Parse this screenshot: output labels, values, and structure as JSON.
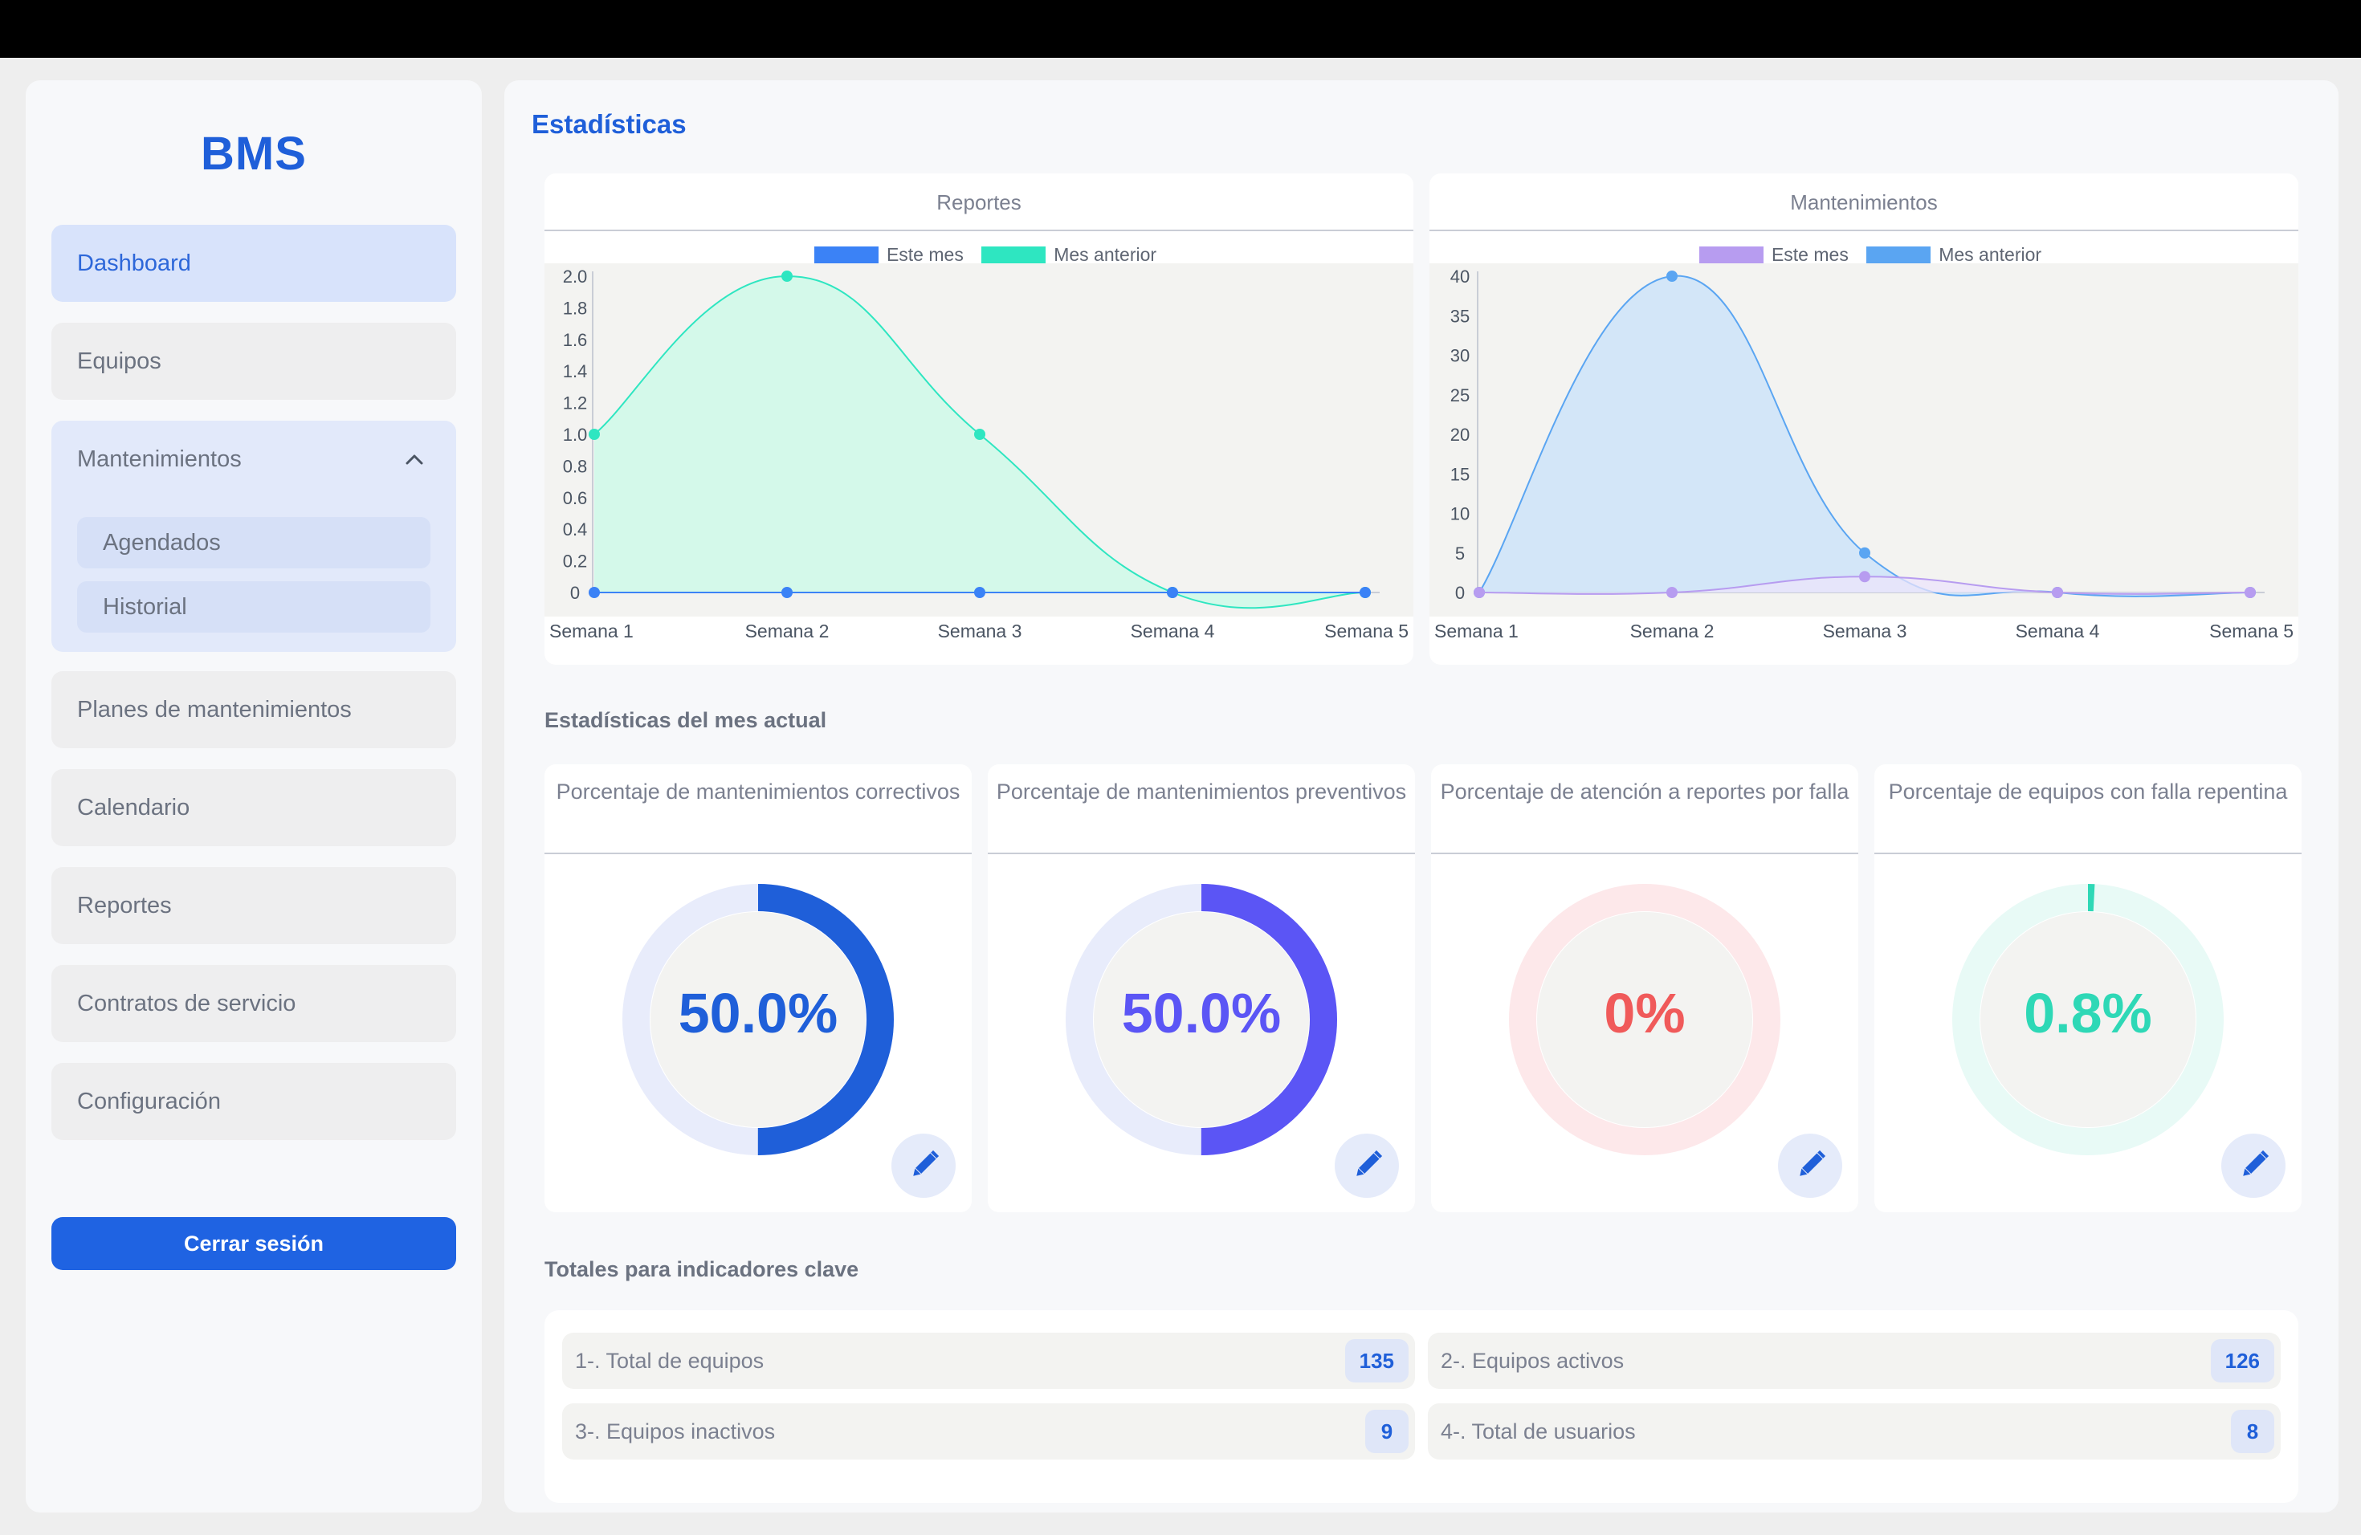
{
  "app": {
    "brand": "BMS"
  },
  "sidebar": {
    "items": [
      {
        "label": "Dashboard"
      },
      {
        "label": "Equipos"
      },
      {
        "label": "Mantenimientos"
      },
      {
        "label": "Planes de mantenimientos"
      },
      {
        "label": "Calendario"
      },
      {
        "label": "Reportes"
      },
      {
        "label": "Contratos de servicio"
      },
      {
        "label": "Configuración"
      }
    ],
    "subitems": [
      {
        "label": "Agendados"
      },
      {
        "label": "Historial"
      }
    ],
    "logout_label": "Cerrar sesión"
  },
  "main": {
    "title": "Estadísticas",
    "section_month": "Estadísticas del mes actual",
    "section_totals": "Totales para indicadores clave"
  },
  "chart_data": [
    {
      "type": "area",
      "title": "Reportes",
      "categories": [
        "Semana 1",
        "Semana 2",
        "Semana 3",
        "Semana 4",
        "Semana 5"
      ],
      "series": [
        {
          "name": "Este mes",
          "values": [
            0,
            0,
            0,
            0,
            0
          ],
          "color": "#3b82f6"
        },
        {
          "name": "Mes anterior",
          "values": [
            1,
            2,
            1,
            0,
            0
          ],
          "color": "#2ee6c1"
        }
      ],
      "yticks": [
        "0",
        "0.2",
        "0.4",
        "0.6",
        "0.8",
        "1.0",
        "1.2",
        "1.4",
        "1.6",
        "1.8",
        "2.0"
      ],
      "ylim": [
        0,
        2
      ],
      "legend": "top"
    },
    {
      "type": "area",
      "title": "Mantenimientos",
      "categories": [
        "Semana 1",
        "Semana 2",
        "Semana 3",
        "Semana 4",
        "Semana 5"
      ],
      "series": [
        {
          "name": "Este mes",
          "values": [
            0,
            0,
            2,
            0,
            0
          ],
          "color": "#b79cf0"
        },
        {
          "name": "Mes anterior",
          "values": [
            0,
            40,
            5,
            0,
            0
          ],
          "color": "#5aa5f2"
        }
      ],
      "yticks": [
        "0",
        "5",
        "10",
        "15",
        "20",
        "25",
        "30",
        "35",
        "40"
      ],
      "ylim": [
        0,
        40
      ],
      "legend": "top"
    }
  ],
  "gauges": [
    {
      "title": "Porcentaje de mantenimientos correctivos",
      "value_text": "50.0%",
      "value": 0.5,
      "color": "#1f5fd9",
      "track": "#e8ecfb"
    },
    {
      "title": "Porcentaje de mantenimientos preventivos",
      "value_text": "50.0%",
      "value": 0.5,
      "color": "#5b55f5",
      "track": "#e8ecfb"
    },
    {
      "title": "Porcentaje de atención a reportes por falla",
      "value_text": "0%",
      "value": 0,
      "color": "#f05a5a",
      "track": "#fde8ea"
    },
    {
      "title": "Porcentaje de equipos con falla repentina",
      "value_text": "0.8%",
      "value": 0.008,
      "color": "#2ed8b6",
      "track": "#e8faf6"
    }
  ],
  "kpis": [
    {
      "label": "1-. Total de equipos",
      "value": "135"
    },
    {
      "label": "2-. Equipos activos",
      "value": "126"
    },
    {
      "label": "3-. Equipos inactivos",
      "value": "9"
    },
    {
      "label": "4-. Total de usuarios",
      "value": "8"
    }
  ]
}
